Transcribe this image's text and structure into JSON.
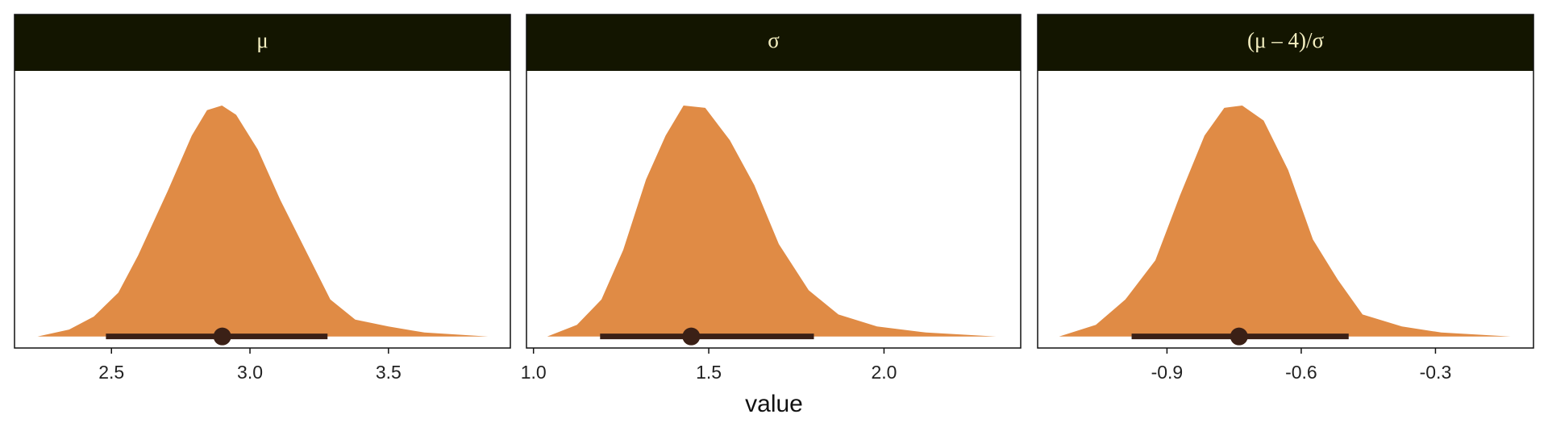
{
  "xlabel": "value",
  "chart_data": [
    {
      "type": "halfeye",
      "title": "μ",
      "color": "#e08b45",
      "x": [
        2.233,
        2.347,
        2.436,
        2.525,
        2.596,
        2.703,
        2.79,
        2.845,
        2.899,
        2.95,
        3.028,
        3.11,
        3.2,
        3.29,
        3.38,
        3.5,
        3.63,
        3.86
      ],
      "values": [
        0,
        0.03,
        0.086,
        0.19,
        0.35,
        0.63,
        0.87,
        0.98,
        1.0,
        0.96,
        0.81,
        0.59,
        0.375,
        0.16,
        0.073,
        0.043,
        0.017,
        0
      ],
      "point_estimate": 2.9,
      "interval": [
        2.48,
        3.28
      ],
      "xlim": [
        2.15,
        3.94
      ],
      "ylim": [
        -0.05,
        1.15
      ],
      "xticks": [
        2.5,
        {
          "value": 3.0,
          "label": "3.0"
        },
        3.5
      ]
    },
    {
      "type": "halfeye",
      "title": "σ",
      "color": "#e08b45",
      "x": [
        1.039,
        1.124,
        1.194,
        1.256,
        1.321,
        1.377,
        1.428,
        1.49,
        1.56,
        1.63,
        1.7,
        1.785,
        1.87,
        1.98,
        2.12,
        2.32
      ],
      "values": [
        0,
        0.05,
        0.16,
        0.375,
        0.68,
        0.87,
        1.0,
        0.99,
        0.85,
        0.655,
        0.4,
        0.2,
        0.095,
        0.043,
        0.017,
        0
      ],
      "point_estimate": 1.45,
      "interval": [
        1.19,
        1.8
      ],
      "xlim": [
        0.98,
        2.39
      ],
      "ylim": [
        -0.05,
        1.15
      ],
      "xticks": [
        {
          "value": 1.0,
          "label": "1.0"
        },
        1.5,
        {
          "value": 2.0,
          "label": "2.0"
        }
      ]
    },
    {
      "type": "halfeye",
      "title": "(μ – 4)/σ",
      "color": "#e08b45",
      "x": [
        -1.141,
        -1.059,
        -0.993,
        -0.926,
        -0.871,
        -0.816,
        -0.772,
        -0.732,
        -0.684,
        -0.629,
        -0.574,
        -0.518,
        -0.463,
        -0.375,
        -0.287,
        -0.132
      ],
      "values": [
        0,
        0.05,
        0.16,
        0.33,
        0.61,
        0.87,
        0.99,
        1.0,
        0.935,
        0.72,
        0.42,
        0.245,
        0.095,
        0.043,
        0.017,
        0
      ],
      "point_estimate": -0.739,
      "interval": [
        -0.979,
        -0.494
      ],
      "xlim": [
        -1.189,
        -0.081
      ],
      "ylim": [
        -0.05,
        1.15
      ],
      "xticks": [
        -0.9,
        -0.6,
        -0.3
      ]
    }
  ]
}
